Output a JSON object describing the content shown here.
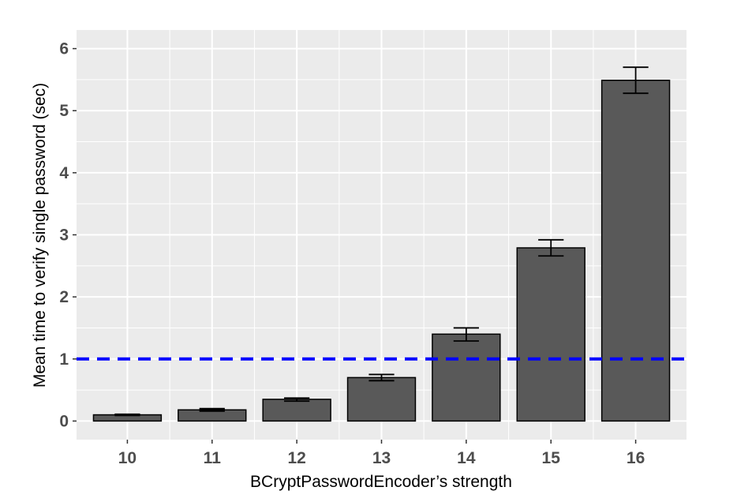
{
  "chart_data": {
    "type": "bar",
    "title": "",
    "xlabel": "BCryptPasswordEncoder’s strength",
    "ylabel": "Mean time to verify single password (sec)",
    "categories": [
      "10",
      "11",
      "12",
      "13",
      "14",
      "15",
      "16"
    ],
    "values": [
      0.1,
      0.18,
      0.35,
      0.7,
      1.4,
      2.79,
      5.49
    ],
    "error_low": [
      0.09,
      0.16,
      0.32,
      0.65,
      1.29,
      2.66,
      5.28
    ],
    "error_high": [
      0.11,
      0.2,
      0.37,
      0.75,
      1.5,
      2.92,
      5.7
    ],
    "ylim": [
      -0.3,
      6.3
    ],
    "yticks": [
      0,
      1,
      2,
      3,
      4,
      5,
      6
    ],
    "ytick_labels": [
      "0",
      "1",
      "2",
      "3",
      "4",
      "5",
      "6"
    ],
    "reference_line": {
      "y": 1,
      "color": "#0000ff",
      "style": "dashed"
    },
    "bar_color": "#595959",
    "bar_edge_color": "#000000",
    "panel_color": "#ebebeb",
    "grid": true,
    "legend": "none"
  }
}
